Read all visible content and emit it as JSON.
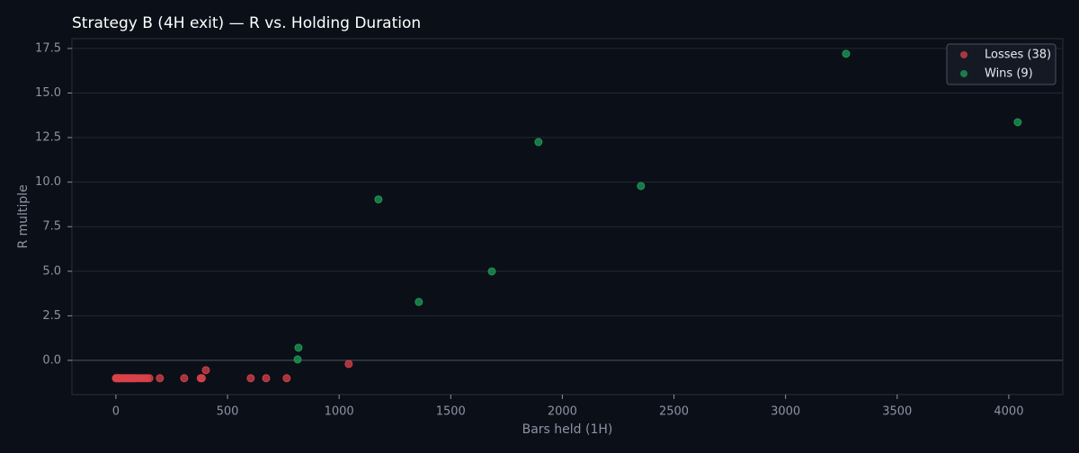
{
  "chart_data": {
    "type": "scatter",
    "title": "Strategy B (4H exit) — R vs. Holding Duration",
    "xlabel": "Bars held (1H)",
    "ylabel": "R multiple",
    "xlim": [
      -197,
      4242
    ],
    "ylim": [
      -1.92,
      18.05
    ],
    "xticks": [
      0,
      500,
      1000,
      1500,
      2000,
      2500,
      3000,
      3500,
      4000
    ],
    "yticks": [
      {
        "value": 0,
        "label": "0.0"
      },
      2.5,
      {
        "value": 5,
        "label": "5.0"
      },
      7.5,
      {
        "value": 10,
        "label": "10.0"
      },
      12.5,
      {
        "value": 15,
        "label": "15.0"
      },
      17.5
    ],
    "grid": true,
    "hline": 0,
    "legend": "upper right",
    "series": [
      {
        "name": "Losses (38)",
        "color": "#d9434a",
        "x": [
          0,
          2,
          5,
          8,
          10,
          12,
          15,
          18,
          20,
          25,
          30,
          35,
          40,
          45,
          50,
          55,
          60,
          65,
          70,
          75,
          80,
          85,
          90,
          110,
          120,
          130,
          140,
          150,
          197,
          306,
          380,
          385,
          403,
          604,
          673,
          765,
          1043,
          100
        ],
        "y": [
          -1,
          -1,
          -1,
          -1,
          -1,
          -1,
          -1,
          -1,
          -1,
          -1,
          -1,
          -1,
          -1,
          -1,
          -1,
          -1,
          -1,
          -1,
          -1,
          -1,
          -1,
          -1,
          -1,
          -1,
          -1,
          -1,
          -1,
          -1,
          -1,
          -1,
          -1,
          -1,
          -0.55,
          -1,
          -1,
          -1,
          -0.2,
          -1
        ]
      },
      {
        "name": "Wins (9)",
        "color": "#1f9e55",
        "x": [
          814,
          818,
          1176,
          1357,
          1684,
          1893,
          2352,
          3271,
          4040
        ],
        "y": [
          0.05,
          0.71,
          9.03,
          3.28,
          4.99,
          12.25,
          9.78,
          17.2,
          13.36
        ]
      }
    ]
  }
}
